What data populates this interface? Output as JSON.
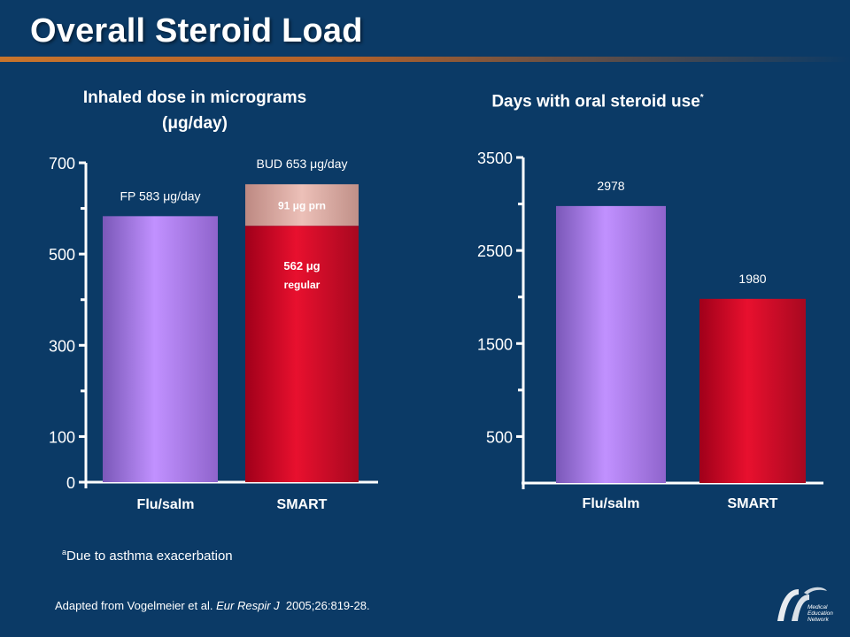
{
  "slide": {
    "title": "Overall Steroid Load",
    "footnote_marker": "a",
    "footnote_text": "Due to asthma exacerbation",
    "citation_prefix": "Adapted from Vogelmeier et al. ",
    "citation_journal": "Eur Respir J",
    "citation_suffix": "  2005;26:819-28.",
    "logo_text": [
      "Medical",
      "Education",
      "Network"
    ]
  },
  "colors": {
    "background": "#0b3a66",
    "flu_salm": "#b580ee",
    "smart": "#d8102c",
    "prn": "#e2b0a8",
    "title_rule": "#c8742c"
  },
  "chart_data": [
    {
      "type": "bar",
      "stacked": true,
      "title_line1": "Inhaled dose in micrograms",
      "title_line2": "(μg/day)",
      "categories": [
        "Flu/salm",
        "SMART"
      ],
      "series": [
        {
          "values": [
            583,
            562
          ]
        },
        {
          "values": [
            0,
            91
          ]
        }
      ],
      "top_labels": [
        "FP 583 μg/day",
        "BUD 653 μg/day"
      ],
      "segment_labels": {
        "regular": [
          "562 μg",
          "regular"
        ],
        "prn": "91 μg prn"
      },
      "ylim": [
        0,
        700
      ],
      "yticks": [
        0,
        100,
        300,
        500,
        700
      ],
      "ytick_labels": [
        "0",
        "100",
        "300",
        "500",
        "700"
      ],
      "minor_ticks": [
        200,
        400,
        600
      ],
      "grid": false
    },
    {
      "type": "bar",
      "title": "Days with oral steroid use",
      "title_marker": "*",
      "categories": [
        "Flu/salm",
        "SMART"
      ],
      "values": [
        2978,
        1980
      ],
      "data_labels": [
        "2978",
        "1980"
      ],
      "ylim": [
        0,
        3500
      ],
      "yticks": [
        500,
        1500,
        2500,
        3500
      ],
      "ytick_labels": [
        "500",
        "1500",
        "2500",
        "3500"
      ],
      "minor_ticks": [
        1000,
        2000,
        3000
      ],
      "grid": false
    }
  ]
}
